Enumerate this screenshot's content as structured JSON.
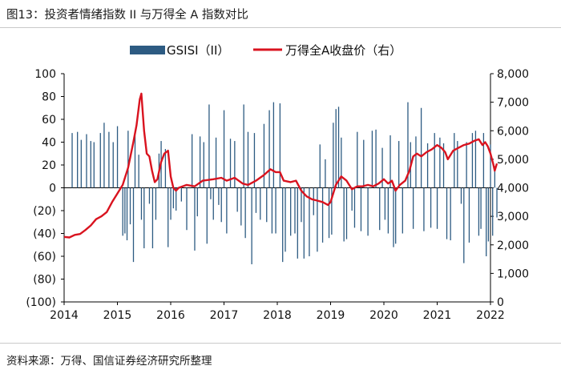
{
  "title": "图13：投资者情绪指数 II 与万得全 A 指数对比",
  "source": "资料来源：万得、国信证券经济研究所整理",
  "chart_data": {
    "type": "bar+line",
    "legend_position": "top-center",
    "grid": false,
    "x_ticks": [
      "2014",
      "2015",
      "2016",
      "2017",
      "2018",
      "2019",
      "2020",
      "2021",
      "2022"
    ],
    "x_range": [
      2014,
      2022
    ],
    "y_left": {
      "range": [
        -100,
        100
      ],
      "ticks": [
        100,
        80,
        60,
        40,
        20,
        0,
        -20,
        -40,
        -60,
        -80,
        -100
      ],
      "tick_labels": [
        "100",
        "80",
        "60",
        "40",
        "20",
        "0",
        "(20)",
        "(40)",
        "(60)",
        "(80)",
        "(100)"
      ]
    },
    "y_right": {
      "range": [
        0,
        8000
      ],
      "ticks": [
        8000,
        7000,
        6000,
        5000,
        4000,
        3000,
        2000,
        1000,
        0
      ],
      "tick_labels": [
        "8,000",
        "7,000",
        "6,000",
        "5,000",
        "4,000",
        "3,000",
        "2,000",
        "1,000",
        "0"
      ]
    },
    "series": [
      {
        "name": "GSISI（II）",
        "type": "bar",
        "axis": "left",
        "color": "#2d5b82",
        "points": [
          [
            2014.15,
            48
          ],
          [
            2014.25,
            49
          ],
          [
            2014.32,
            42
          ],
          [
            2014.42,
            47
          ],
          [
            2014.5,
            41
          ],
          [
            2014.56,
            40
          ],
          [
            2014.68,
            48
          ],
          [
            2014.75,
            57
          ],
          [
            2014.84,
            49
          ],
          [
            2014.92,
            40
          ],
          [
            2015.0,
            54
          ],
          [
            2015.1,
            -42
          ],
          [
            2015.14,
            -40
          ],
          [
            2015.18,
            -46
          ],
          [
            2015.2,
            50
          ],
          [
            2015.24,
            -32
          ],
          [
            2015.3,
            -65
          ],
          [
            2015.33,
            46
          ],
          [
            2015.4,
            29
          ],
          [
            2015.45,
            -28
          ],
          [
            2015.5,
            -53
          ],
          [
            2015.6,
            -14
          ],
          [
            2015.66,
            -53
          ],
          [
            2015.72,
            -28
          ],
          [
            2015.78,
            30
          ],
          [
            2015.82,
            41
          ],
          [
            2015.9,
            34
          ],
          [
            2015.95,
            -52
          ],
          [
            2016.0,
            -28
          ],
          [
            2016.05,
            -18
          ],
          [
            2016.1,
            -20
          ],
          [
            2016.2,
            -12
          ],
          [
            2016.3,
            -37
          ],
          [
            2016.4,
            47
          ],
          [
            2016.45,
            -55
          ],
          [
            2016.5,
            -25
          ],
          [
            2016.55,
            45
          ],
          [
            2016.62,
            40
          ],
          [
            2016.68,
            -49
          ],
          [
            2016.72,
            73
          ],
          [
            2016.75,
            -10
          ],
          [
            2016.8,
            -28
          ],
          [
            2016.85,
            44
          ],
          [
            2016.9,
            -15
          ],
          [
            2016.95,
            -30
          ],
          [
            2017.0,
            68
          ],
          [
            2017.05,
            -40
          ],
          [
            2017.12,
            43
          ],
          [
            2017.2,
            41
          ],
          [
            2017.25,
            -21
          ],
          [
            2017.32,
            -33
          ],
          [
            2017.37,
            73
          ],
          [
            2017.4,
            -44
          ],
          [
            2017.45,
            49
          ],
          [
            2017.52,
            -67
          ],
          [
            2017.57,
            48
          ],
          [
            2017.6,
            -22
          ],
          [
            2017.68,
            -28
          ],
          [
            2017.75,
            56
          ],
          [
            2017.8,
            -30
          ],
          [
            2017.85,
            68
          ],
          [
            2017.9,
            -40
          ],
          [
            2017.93,
            75
          ],
          [
            2017.97,
            -40
          ],
          [
            2018.05,
            74
          ],
          [
            2018.1,
            -65
          ],
          [
            2018.15,
            -56
          ],
          [
            2018.25,
            -42
          ],
          [
            2018.33,
            -40
          ],
          [
            2018.38,
            -62
          ],
          [
            2018.45,
            -30
          ],
          [
            2018.5,
            -62
          ],
          [
            2018.6,
            -60
          ],
          [
            2018.68,
            -24
          ],
          [
            2018.75,
            -56
          ],
          [
            2018.8,
            38
          ],
          [
            2018.85,
            -48
          ],
          [
            2018.9,
            25
          ],
          [
            2018.97,
            -44
          ],
          [
            2019.02,
            -41
          ],
          [
            2019.05,
            57
          ],
          [
            2019.1,
            69
          ],
          [
            2019.15,
            71
          ],
          [
            2019.2,
            44
          ],
          [
            2019.25,
            -47
          ],
          [
            2019.3,
            -45
          ],
          [
            2019.4,
            -20
          ],
          [
            2019.45,
            -35
          ],
          [
            2019.5,
            49
          ],
          [
            2019.57,
            -38
          ],
          [
            2019.62,
            42
          ],
          [
            2019.7,
            -42
          ],
          [
            2019.78,
            50
          ],
          [
            2019.85,
            51
          ],
          [
            2019.92,
            -37
          ],
          [
            2019.97,
            35
          ],
          [
            2020.02,
            -28
          ],
          [
            2020.08,
            -40
          ],
          [
            2020.12,
            46
          ],
          [
            2020.18,
            -52
          ],
          [
            2020.22,
            -49
          ],
          [
            2020.28,
            41
          ],
          [
            2020.35,
            -40
          ],
          [
            2020.45,
            75
          ],
          [
            2020.5,
            40
          ],
          [
            2020.55,
            -36
          ],
          [
            2020.6,
            45
          ],
          [
            2020.7,
            70
          ],
          [
            2020.75,
            -38
          ],
          [
            2020.82,
            39
          ],
          [
            2020.88,
            -35
          ],
          [
            2020.95,
            48
          ],
          [
            2021.0,
            -36
          ],
          [
            2021.05,
            44
          ],
          [
            2021.12,
            39
          ],
          [
            2021.18,
            -45
          ],
          [
            2021.25,
            -46
          ],
          [
            2021.32,
            48
          ],
          [
            2021.38,
            41
          ],
          [
            2021.45,
            -14
          ],
          [
            2021.5,
            -66
          ],
          [
            2021.55,
            40
          ],
          [
            2021.6,
            -48
          ],
          [
            2021.66,
            48
          ],
          [
            2021.72,
            50
          ],
          [
            2021.78,
            -42
          ],
          [
            2021.82,
            -36
          ],
          [
            2021.87,
            48
          ],
          [
            2021.92,
            -60
          ],
          [
            2021.96,
            -47
          ],
          [
            2022.0,
            38
          ],
          [
            2022.04,
            -42
          ],
          [
            2022.08,
            19
          ],
          [
            2022.12,
            -26
          ]
        ]
      },
      {
        "name": "万得全A收盘价（右）",
        "type": "line",
        "axis": "right",
        "color": "#d9131f",
        "points": [
          [
            2014.0,
            2280
          ],
          [
            2014.1,
            2260
          ],
          [
            2014.2,
            2350
          ],
          [
            2014.3,
            2380
          ],
          [
            2014.4,
            2520
          ],
          [
            2014.5,
            2680
          ],
          [
            2014.6,
            2900
          ],
          [
            2014.7,
            3000
          ],
          [
            2014.8,
            3150
          ],
          [
            2014.9,
            3500
          ],
          [
            2015.0,
            3800
          ],
          [
            2015.1,
            4100
          ],
          [
            2015.2,
            4700
          ],
          [
            2015.3,
            5600
          ],
          [
            2015.36,
            6200
          ],
          [
            2015.42,
            7100
          ],
          [
            2015.45,
            7300
          ],
          [
            2015.5,
            6000
          ],
          [
            2015.55,
            5200
          ],
          [
            2015.6,
            5100
          ],
          [
            2015.65,
            4600
          ],
          [
            2015.7,
            4200
          ],
          [
            2015.75,
            4300
          ],
          [
            2015.82,
            4900
          ],
          [
            2015.88,
            5200
          ],
          [
            2015.95,
            5300
          ],
          [
            2016.0,
            4400
          ],
          [
            2016.05,
            4000
          ],
          [
            2016.1,
            3900
          ],
          [
            2016.15,
            4000
          ],
          [
            2016.3,
            4100
          ],
          [
            2016.45,
            4050
          ],
          [
            2016.6,
            4250
          ],
          [
            2016.8,
            4300
          ],
          [
            2016.95,
            4350
          ],
          [
            2017.05,
            4250
          ],
          [
            2017.2,
            4350
          ],
          [
            2017.35,
            4150
          ],
          [
            2017.45,
            4100
          ],
          [
            2017.6,
            4250
          ],
          [
            2017.75,
            4450
          ],
          [
            2017.87,
            4650
          ],
          [
            2017.97,
            4550
          ],
          [
            2018.05,
            4550
          ],
          [
            2018.12,
            4250
          ],
          [
            2018.25,
            4200
          ],
          [
            2018.35,
            4250
          ],
          [
            2018.45,
            3900
          ],
          [
            2018.55,
            3700
          ],
          [
            2018.65,
            3600
          ],
          [
            2018.75,
            3550
          ],
          [
            2018.85,
            3500
          ],
          [
            2018.95,
            3400
          ],
          [
            2019.0,
            3500
          ],
          [
            2019.1,
            4100
          ],
          [
            2019.2,
            4400
          ],
          [
            2019.3,
            4250
          ],
          [
            2019.4,
            3950
          ],
          [
            2019.5,
            4050
          ],
          [
            2019.6,
            4050
          ],
          [
            2019.7,
            4100
          ],
          [
            2019.8,
            4050
          ],
          [
            2019.9,
            4150
          ],
          [
            2020.0,
            4300
          ],
          [
            2020.08,
            4150
          ],
          [
            2020.15,
            4250
          ],
          [
            2020.22,
            3900
          ],
          [
            2020.3,
            4100
          ],
          [
            2020.4,
            4250
          ],
          [
            2020.48,
            4600
          ],
          [
            2020.55,
            5100
          ],
          [
            2020.62,
            5200
          ],
          [
            2020.7,
            5100
          ],
          [
            2020.8,
            5250
          ],
          [
            2020.9,
            5350
          ],
          [
            2021.0,
            5500
          ],
          [
            2021.08,
            5400
          ],
          [
            2021.15,
            5250
          ],
          [
            2021.2,
            5000
          ],
          [
            2021.3,
            5300
          ],
          [
            2021.4,
            5400
          ],
          [
            2021.5,
            5500
          ],
          [
            2021.6,
            5550
          ],
          [
            2021.7,
            5650
          ],
          [
            2021.78,
            5700
          ],
          [
            2021.85,
            5500
          ],
          [
            2021.9,
            5600
          ],
          [
            2021.95,
            5450
          ],
          [
            2022.0,
            5200
          ],
          [
            2022.05,
            4850
          ],
          [
            2022.08,
            4600
          ],
          [
            2022.12,
            4850
          ]
        ]
      }
    ]
  }
}
